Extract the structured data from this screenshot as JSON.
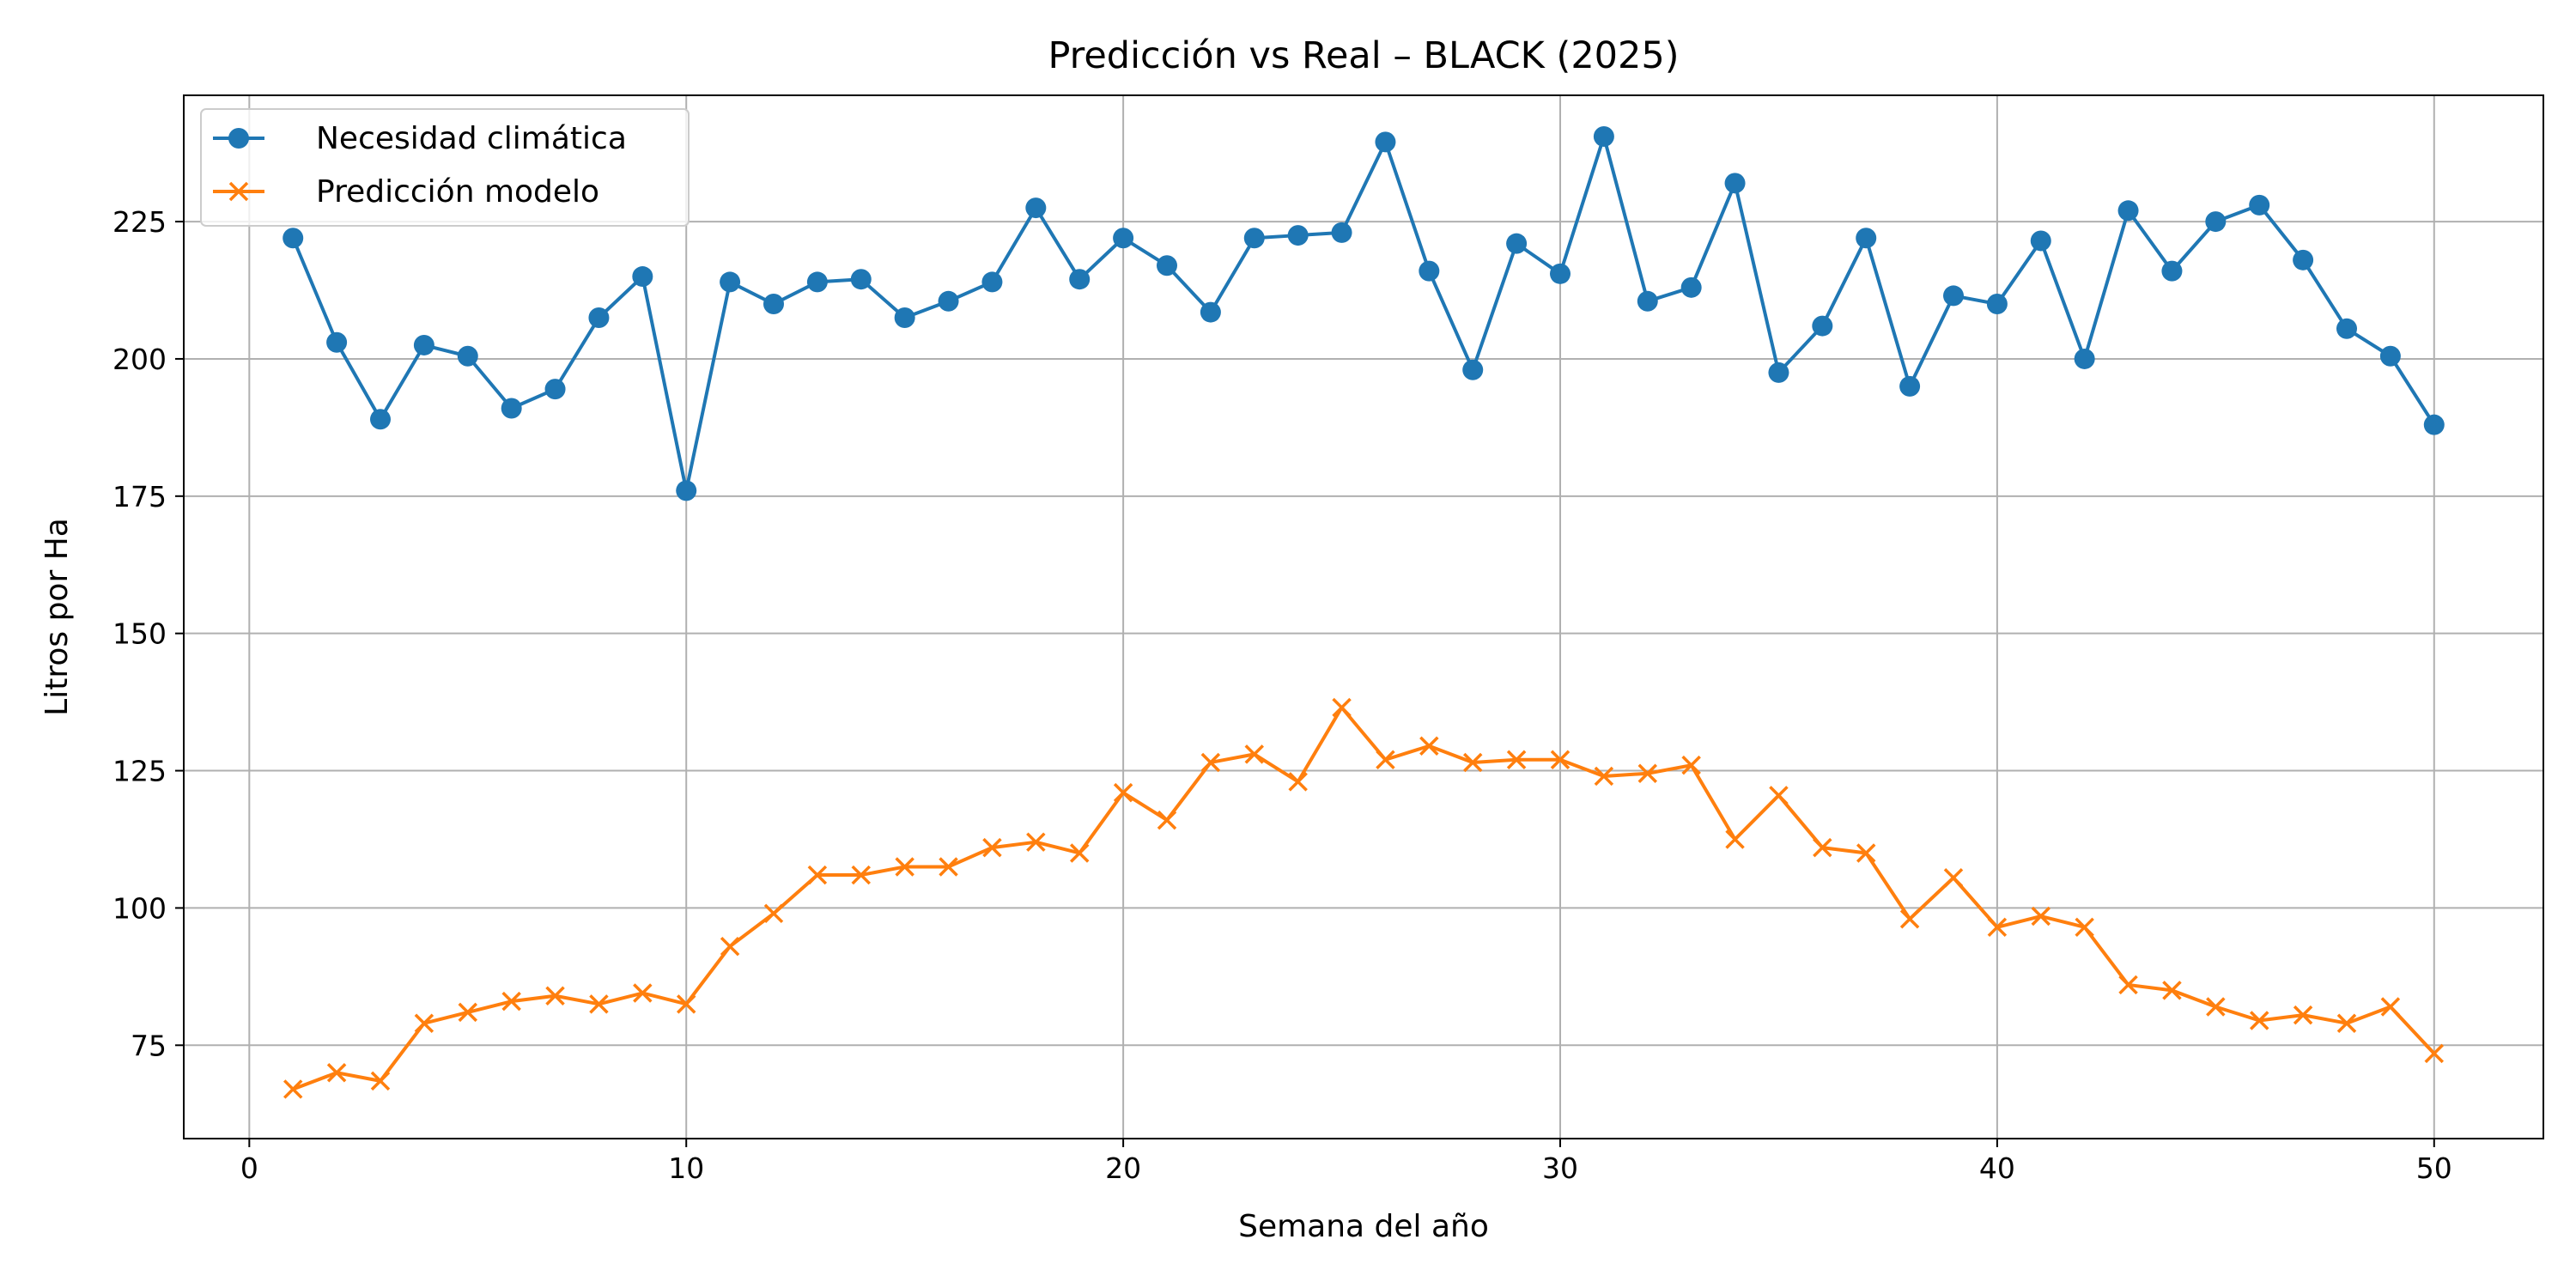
{
  "chart_data": {
    "type": "line",
    "title": "Predicción vs Real – BLACK (2025)",
    "xlabel": "Semana del año",
    "ylabel": "Litros por Ha",
    "xlim": [
      -1.5,
      52.5
    ],
    "ylim": [
      58,
      248
    ],
    "xticks": [
      0,
      10,
      20,
      30,
      40,
      50
    ],
    "yticks": [
      75,
      100,
      125,
      150,
      175,
      200,
      225
    ],
    "grid": true,
    "legend_position": "top-left",
    "x": [
      1,
      2,
      3,
      4,
      5,
      6,
      7,
      8,
      9,
      10,
      11,
      12,
      13,
      14,
      15,
      16,
      17,
      18,
      19,
      20,
      21,
      22,
      23,
      24,
      25,
      26,
      27,
      28,
      29,
      30,
      31,
      32,
      33,
      34,
      35,
      36,
      37,
      38,
      39,
      40,
      41,
      42,
      43,
      44,
      45,
      46,
      47,
      48,
      49,
      50
    ],
    "series": [
      {
        "name": "Necesidad climática",
        "color": "#1f77b4",
        "marker": "circle",
        "values": [
          222,
          203,
          189,
          202.5,
          200.5,
          191,
          194.5,
          207.5,
          215,
          176,
          214,
          210,
          214,
          214.5,
          207.5,
          210.5,
          214,
          227.5,
          214.5,
          222,
          217,
          208.5,
          222,
          222.5,
          223,
          239.5,
          216,
          198,
          221,
          215.5,
          240.5,
          210.5,
          213,
          232,
          197.5,
          206,
          222,
          195,
          211.5,
          210,
          221.5,
          200,
          227,
          216,
          225,
          228,
          218,
          205.5,
          200.5,
          188
        ]
      },
      {
        "name": "Predicción modelo",
        "color": "#ff7f0e",
        "marker": "x",
        "values": [
          67,
          70,
          68.5,
          79,
          81,
          83,
          84,
          82.5,
          84.5,
          82.5,
          93,
          99,
          106,
          106,
          107.5,
          107.5,
          111,
          112,
          110,
          121,
          116,
          126.5,
          128,
          123,
          136.5,
          127,
          129.5,
          126.5,
          127,
          127,
          124,
          124.5,
          126,
          112.5,
          120.5,
          111,
          110,
          98,
          105.5,
          96.5,
          98.5,
          96.5,
          86,
          85,
          82,
          79.5,
          80.5,
          79,
          82,
          73.5
        ]
      }
    ]
  }
}
